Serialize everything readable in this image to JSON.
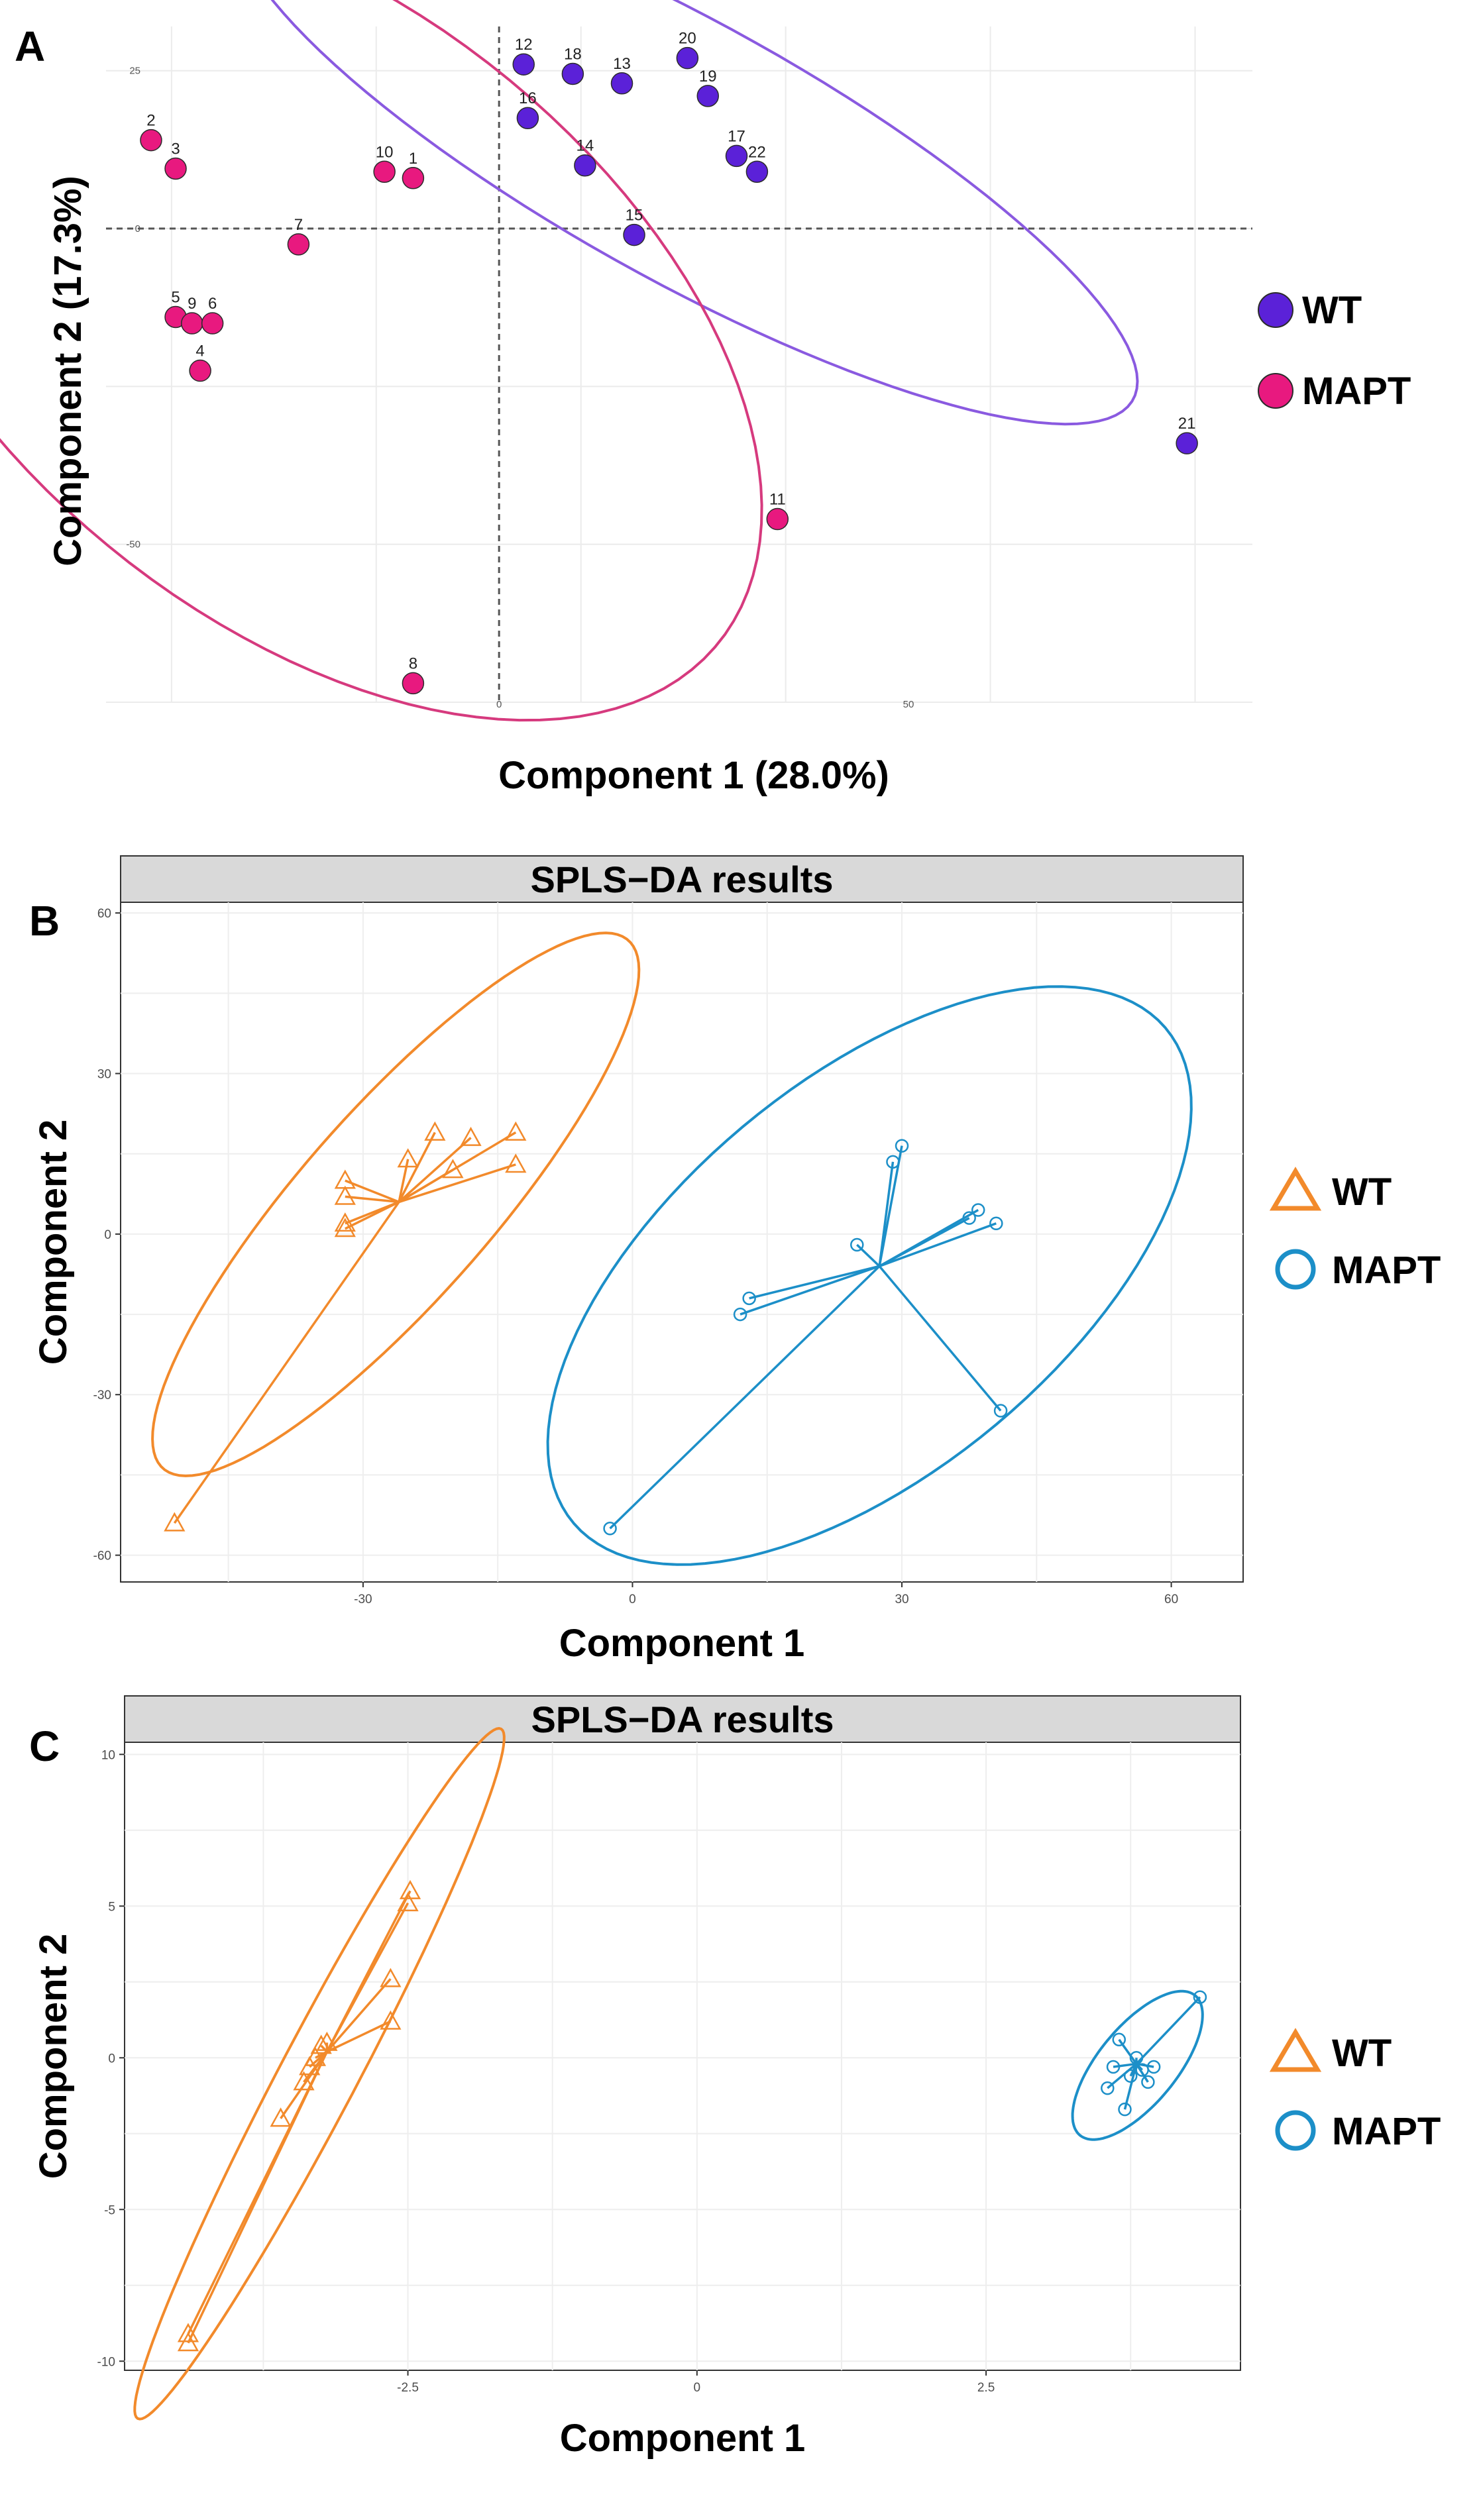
{
  "chart_data": [
    {
      "panel": "A",
      "type": "scatter",
      "xlabel": "Component 1 (28.0%)",
      "ylabel": "Component 2 (17.3%)",
      "xlim": [
        -48,
        92
      ],
      "ylim": [
        -75,
        32
      ],
      "x_ticks": [
        0,
        50
      ],
      "y_ticks": [
        25,
        0,
        -50
      ],
      "grid": true,
      "legend_position": "right",
      "series": [
        {
          "name": "WT",
          "color": "#5b21d8",
          "ellipse_color": "#8a5ae0",
          "points": [
            {
              "label": "12",
              "x": 3,
              "y": 26
            },
            {
              "label": "18",
              "x": 9,
              "y": 24.5
            },
            {
              "label": "13",
              "x": 15,
              "y": 23
            },
            {
              "label": "20",
              "x": 23,
              "y": 27
            },
            {
              "label": "19",
              "x": 25.5,
              "y": 21
            },
            {
              "label": "16",
              "x": 3.5,
              "y": 17.5
            },
            {
              "label": "14",
              "x": 10.5,
              "y": 10
            },
            {
              "label": "17",
              "x": 29,
              "y": 11.5
            },
            {
              "label": "22",
              "x": 31.5,
              "y": 9
            },
            {
              "label": "15",
              "x": 16.5,
              "y": -1
            },
            {
              "label": "21",
              "x": 84,
              "y": -34
            }
          ]
        },
        {
          "name": "MAPT",
          "color": "#e8197f",
          "ellipse_color": "#d63a7e",
          "points": [
            {
              "label": "2",
              "x": -42.5,
              "y": 14
            },
            {
              "label": "3",
              "x": -39.5,
              "y": 9.5
            },
            {
              "label": "10",
              "x": -14,
              "y": 9
            },
            {
              "label": "1",
              "x": -10.5,
              "y": 8
            },
            {
              "label": "7",
              "x": -24.5,
              "y": -2.5
            },
            {
              "label": "5",
              "x": -39.5,
              "y": -14
            },
            {
              "label": "9",
              "x": -37.5,
              "y": -15
            },
            {
              "label": "6",
              "x": -35,
              "y": -15
            },
            {
              "label": "4",
              "x": -36.5,
              "y": -22.5
            },
            {
              "label": "11",
              "x": 34,
              "y": -46
            },
            {
              "label": "8",
              "x": -10.5,
              "y": -72
            }
          ]
        }
      ]
    },
    {
      "panel": "B",
      "type": "scatter",
      "title": "SPLS−DA results",
      "xlabel": "Component 1",
      "ylabel": "Component 2",
      "xlim": [
        -57,
        68
      ],
      "ylim": [
        -65,
        62
      ],
      "x_ticks": [
        -30,
        0,
        30,
        60
      ],
      "y_ticks": [
        60,
        30,
        0,
        -30,
        -60
      ],
      "grid": true,
      "legend_position": "right",
      "series": [
        {
          "name": "WT",
          "color": "#f28a2b",
          "marker": "triangle",
          "centroid": [
            -26,
            6
          ],
          "x": [
            -51,
            -32,
            -32,
            -32,
            -32,
            -25,
            -22,
            -18,
            -20,
            -13,
            -13
          ],
          "y": [
            -54,
            10,
            7,
            2,
            1,
            14,
            19,
            18,
            12,
            19,
            13
          ]
        },
        {
          "name": "MAPT",
          "color": "#1c8fc8",
          "marker": "circle",
          "centroid": [
            27.5,
            -6
          ],
          "x": [
            -2.5,
            13,
            12,
            25,
            29,
            30,
            37.5,
            38.5,
            40.5,
            41
          ],
          "y": [
            -55,
            -12,
            -15,
            -2,
            13.5,
            16.5,
            3,
            4.5,
            2,
            -33
          ]
        }
      ]
    },
    {
      "panel": "C",
      "type": "scatter",
      "title": "SPLS−DA results",
      "xlabel": "Component 1",
      "ylabel": "Component 2",
      "xlim": [
        -4.95,
        4.7
      ],
      "ylim": [
        -10.3,
        10.4
      ],
      "x_ticks": [
        -2.5,
        0.0,
        2.5
      ],
      "y_ticks": [
        10,
        5,
        0,
        -5,
        -10
      ],
      "grid": true,
      "legend_position": "right",
      "series": [
        {
          "name": "WT",
          "color": "#f28a2b",
          "marker": "triangle",
          "centroid": [
            -3.2,
            0.2
          ],
          "x": [
            -4.4,
            -4.4,
            -3.6,
            -3.4,
            -3.35,
            -3.3,
            -3.25,
            -3.2,
            -2.65,
            -2.65,
            -2.5,
            -2.48
          ],
          "y": [
            -9.4,
            -9.1,
            -2.0,
            -0.8,
            -0.3,
            0,
            0.4,
            0.5,
            1.2,
            2.6,
            5.1,
            5.5
          ]
        },
        {
          "name": "MAPT",
          "color": "#1c8fc8",
          "marker": "circle",
          "centroid": [
            3.8,
            -0.2
          ],
          "x": [
            3.55,
            3.6,
            3.65,
            3.7,
            3.75,
            3.8,
            3.85,
            3.9,
            3.95,
            4.35
          ],
          "y": [
            -1.0,
            -0.3,
            0.6,
            -1.7,
            -0.6,
            0.0,
            -0.4,
            -0.8,
            -0.3,
            2.0
          ]
        }
      ]
    }
  ]
}
